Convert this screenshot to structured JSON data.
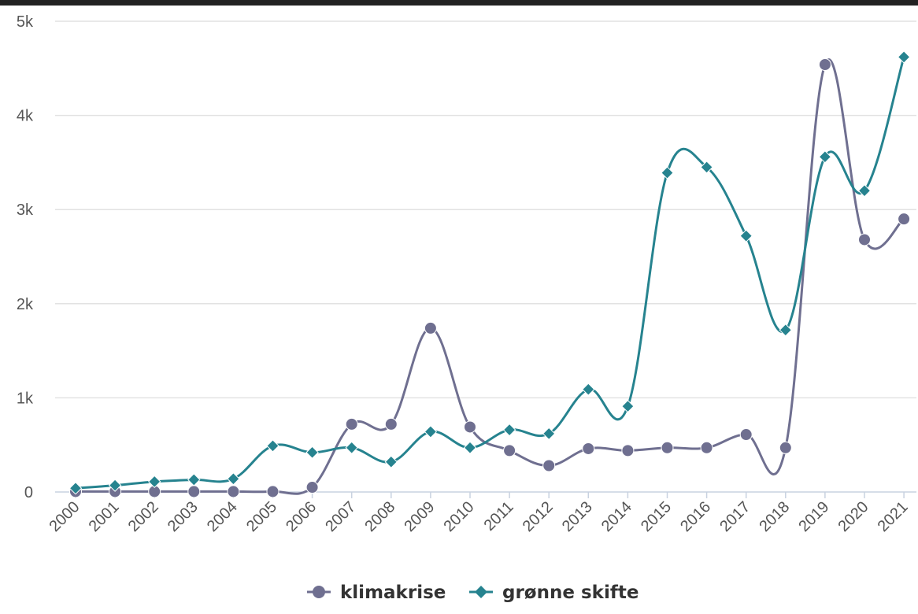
{
  "chart_data": {
    "type": "line",
    "title": "",
    "xlabel": "",
    "ylabel": "",
    "x": [
      "2000",
      "2001",
      "2002",
      "2003",
      "2004",
      "2005",
      "2006",
      "2007",
      "2008",
      "2009",
      "2010",
      "2011",
      "2012",
      "2013",
      "2014",
      "2015",
      "2016",
      "2017",
      "2018",
      "2019",
      "2020",
      "2021"
    ],
    "ylim": [
      0,
      5000
    ],
    "yticks": [
      {
        "value": 0,
        "label": "0"
      },
      {
        "value": 1000,
        "label": "1k"
      },
      {
        "value": 2000,
        "label": "2k"
      },
      {
        "value": 3000,
        "label": "3k"
      },
      {
        "value": 4000,
        "label": "4k"
      },
      {
        "value": 5000,
        "label": "5k"
      }
    ],
    "grid": true,
    "legend": "bottom-center",
    "series": [
      {
        "name": "klimakrise",
        "color": "#6f6f90",
        "marker": "circle",
        "values": [
          5,
          5,
          5,
          5,
          5,
          5,
          50,
          720,
          720,
          1740,
          690,
          440,
          280,
          460,
          440,
          470,
          470,
          610,
          470,
          4540,
          2680,
          2900
        ]
      },
      {
        "name": "grønne skifte",
        "color": "#26838f",
        "marker": "diamond",
        "values": [
          40,
          70,
          110,
          130,
          140,
          490,
          420,
          470,
          320,
          640,
          470,
          660,
          620,
          1090,
          910,
          3390,
          3450,
          2720,
          1720,
          3560,
          3200,
          4620
        ]
      }
    ]
  }
}
